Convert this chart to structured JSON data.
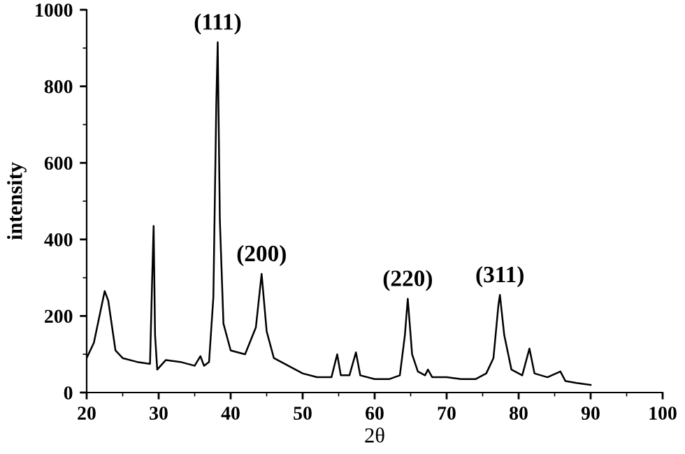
{
  "chart_data": {
    "type": "line",
    "xlabel": "2θ",
    "ylabel": "intensity",
    "xlim": [
      20,
      100
    ],
    "ylim": [
      0,
      1000
    ],
    "xticks": [
      20,
      30,
      40,
      50,
      60,
      70,
      80,
      90,
      100
    ],
    "yticks": [
      0,
      200,
      400,
      600,
      800,
      1000
    ],
    "grid": false,
    "legend": false,
    "marker": "none",
    "line_style": "solid",
    "series": [
      {
        "color": "#000000",
        "x": [
          20,
          21,
          22,
          22.5,
          23,
          24,
          25,
          27,
          28.8,
          29.1,
          29.3,
          29.5,
          29.8,
          31,
          33,
          35,
          35.8,
          36.3,
          37,
          37.6,
          38,
          38.2,
          38.5,
          39,
          40,
          42,
          43.5,
          44.3,
          45,
          46,
          48,
          50,
          52,
          54,
          54.8,
          55.3,
          56.5,
          57.4,
          58,
          60,
          62,
          63.5,
          64.2,
          64.6,
          65.2,
          66,
          67,
          67.4,
          68,
          70,
          72,
          74,
          75.5,
          76.5,
          77.2,
          77.4,
          78,
          79,
          80.5,
          81.5,
          82.2,
          84,
          85.8,
          86.5,
          88,
          90
        ],
        "values": [
          90,
          130,
          220,
          265,
          240,
          110,
          90,
          80,
          75,
          300,
          435,
          150,
          60,
          85,
          80,
          70,
          95,
          70,
          80,
          250,
          750,
          915,
          450,
          180,
          110,
          100,
          170,
          310,
          160,
          90,
          70,
          50,
          40,
          40,
          100,
          45,
          45,
          105,
          45,
          35,
          35,
          45,
          150,
          245,
          100,
          55,
          45,
          60,
          40,
          40,
          35,
          35,
          50,
          90,
          230,
          255,
          150,
          60,
          45,
          115,
          50,
          40,
          55,
          30,
          25,
          20
        ]
      }
    ],
    "annotations": [
      {
        "text": "(111)",
        "x": 38.2,
        "y": 915
      },
      {
        "text": "(200)",
        "x": 44.3,
        "y": 310
      },
      {
        "text": "(220)",
        "x": 64.6,
        "y": 245
      },
      {
        "text": "(311)",
        "x": 77.4,
        "y": 255
      }
    ]
  }
}
